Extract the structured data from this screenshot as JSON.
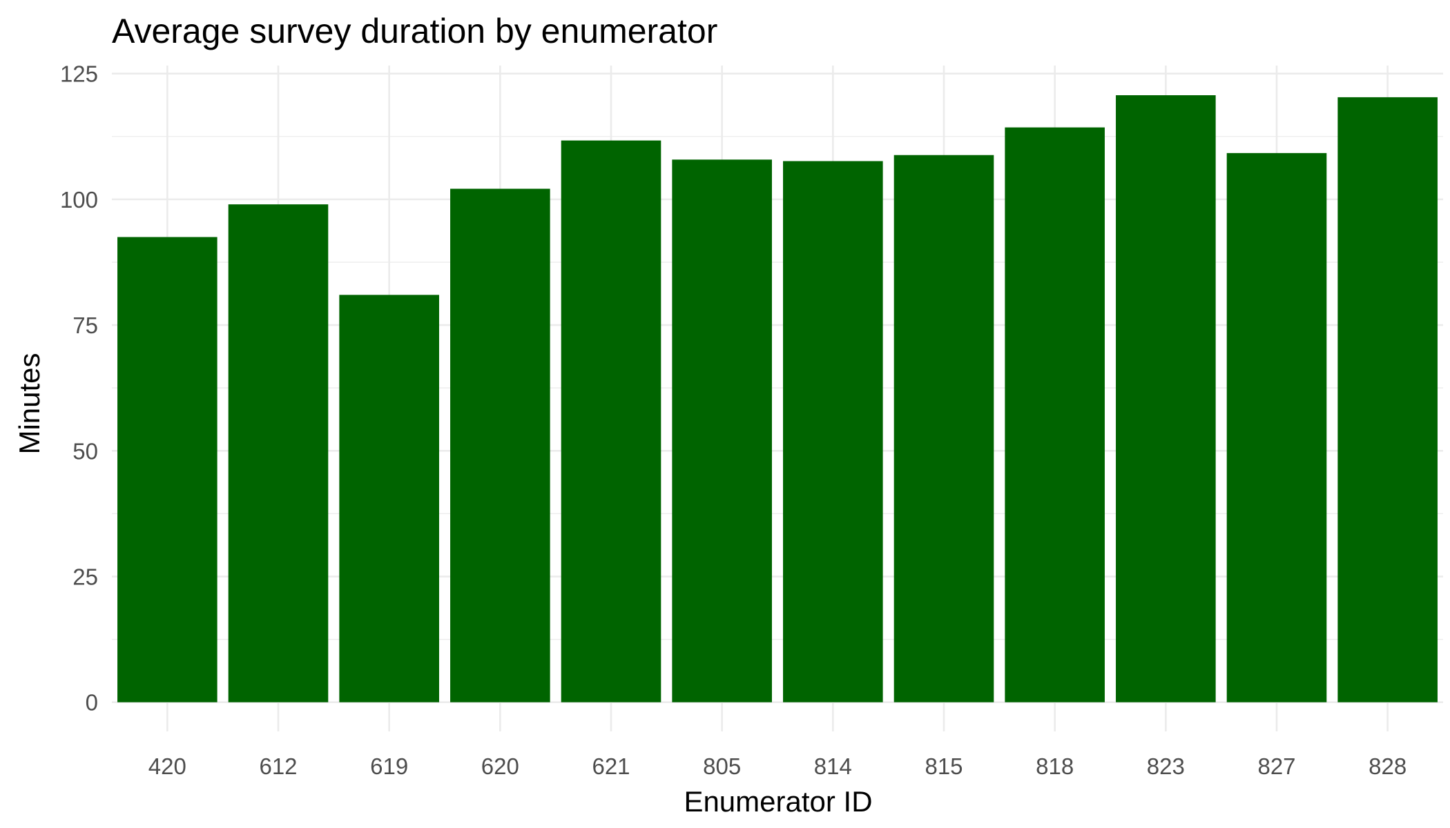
{
  "chart_data": {
    "type": "bar",
    "title": "Average survey duration by enumerator",
    "xlabel": "Enumerator ID",
    "ylabel": "Minutes",
    "categories": [
      "420",
      "612",
      "619",
      "620",
      "621",
      "805",
      "814",
      "815",
      "818",
      "823",
      "827",
      "828"
    ],
    "values": [
      92.5,
      99.0,
      81.0,
      102.1,
      111.7,
      107.9,
      107.6,
      108.8,
      114.3,
      120.7,
      109.2,
      120.3
    ],
    "ylim": [
      -5.8,
      126.6
    ],
    "yticks": [
      0,
      25,
      50,
      75,
      100,
      125
    ],
    "ytick_labels": [
      "0",
      "25",
      "50",
      "75",
      "100",
      "125"
    ],
    "grid": true,
    "legend": "none",
    "bar_color": "#006400",
    "grid_color": "#ebebeb"
  }
}
